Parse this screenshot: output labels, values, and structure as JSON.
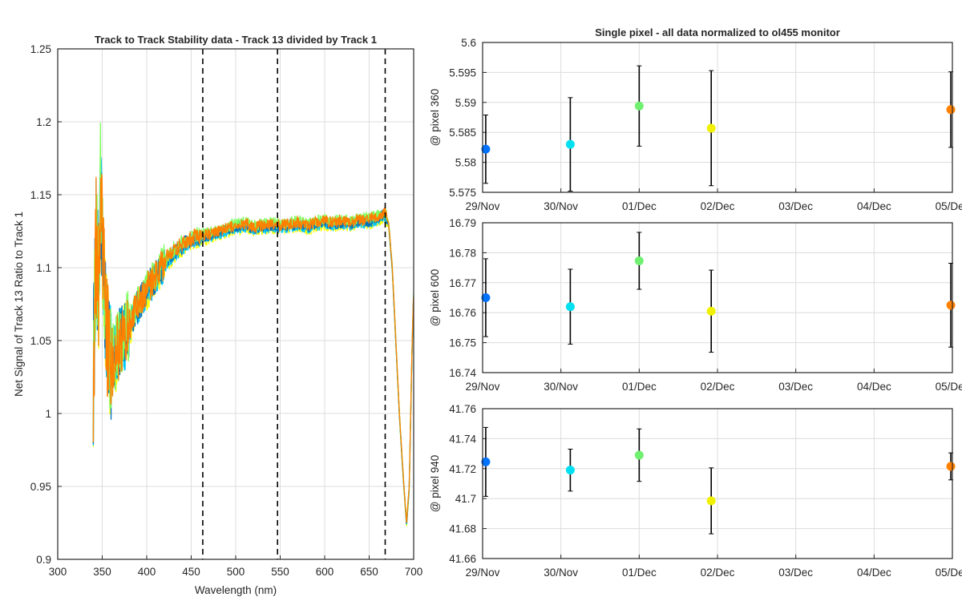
{
  "chart_data": [
    {
      "type": "line",
      "title": "Track to Track Stability data - Track 13 divided by Track 1",
      "xlabel": "Wavelength (nm)",
      "ylabel": "Net Signal of Track 13 Ratio to Track 1",
      "xlim": [
        300,
        700
      ],
      "ylim": [
        0.9,
        1.25
      ],
      "xticks": [
        300,
        350,
        400,
        450,
        500,
        550,
        600,
        650,
        700
      ],
      "xtick_labels": [
        "300",
        "350",
        "400",
        "450",
        "500",
        "550",
        "600",
        "650",
        "700"
      ],
      "yticks": [
        0.9,
        0.95,
        1.0,
        1.05,
        1.1,
        1.15,
        1.2,
        1.25
      ],
      "ytick_labels": [
        "0.9",
        "0.95",
        "1",
        "1.05",
        "1.1",
        "1.15",
        "1.2",
        "1.25"
      ],
      "grid": true,
      "vlines": [
        {
          "x": 463,
          "style": "dashed"
        },
        {
          "x": 547,
          "style": "dashed"
        },
        {
          "x": 668,
          "style": "dashed"
        }
      ],
      "series": [
        {
          "color": "#ffff00",
          "offset": -0.003
        },
        {
          "color": "#00c8ff",
          "offset": -0.002
        },
        {
          "color": "#0072bd",
          "offset": -0.001
        },
        {
          "color": "#80ff60",
          "offset": 0.001
        },
        {
          "color": "#ff8000",
          "offset": 0.0
        }
      ],
      "envelope": {
        "x": [
          340,
          343,
          346,
          348,
          350,
          353,
          356,
          360,
          365,
          370,
          380,
          390,
          400,
          410,
          420,
          430,
          440,
          450,
          460,
          470,
          480,
          490,
          500,
          510,
          520,
          530,
          540,
          550,
          560,
          570,
          580,
          590,
          600,
          610,
          620,
          630,
          640,
          650,
          660,
          668,
          672,
          676,
          680,
          684,
          688,
          692,
          695,
          698,
          700
        ],
        "y": [
          1.03,
          1.12,
          1.08,
          1.16,
          1.12,
          1.08,
          1.05,
          1.035,
          1.04,
          1.05,
          1.06,
          1.075,
          1.085,
          1.095,
          1.104,
          1.111,
          1.116,
          1.12,
          1.122,
          1.123,
          1.125,
          1.127,
          1.129,
          1.13,
          1.128,
          1.129,
          1.13,
          1.129,
          1.13,
          1.131,
          1.129,
          1.131,
          1.132,
          1.131,
          1.132,
          1.131,
          1.133,
          1.133,
          1.135,
          1.137,
          1.13,
          1.1,
          1.05,
          1.0,
          0.96,
          0.925,
          0.95,
          1.04,
          1.085
        ]
      }
    },
    {
      "type": "scatter",
      "title": "Single pixel - all data normalized to ol455 monitor",
      "ylabel": "@ pixel 360",
      "xtick_labels": [
        "29/Nov",
        "30/Nov",
        "01/Dec",
        "02/Dec",
        "03/Dec",
        "04/Dec",
        "05/Dec"
      ],
      "xlim": [
        0,
        6
      ],
      "ylim": [
        5.575,
        5.6
      ],
      "yticks": [
        5.575,
        5.58,
        5.585,
        5.59,
        5.595,
        5.6
      ],
      "ytick_labels": [
        "5.575",
        "5.58",
        "5.585",
        "5.59",
        "5.595",
        "5.6"
      ],
      "grid": true,
      "points": [
        {
          "x": 0.04,
          "y": 5.5822,
          "err": 0.0057,
          "color": "#0072ff"
        },
        {
          "x": 1.12,
          "y": 5.583,
          "err": 0.0078,
          "color": "#00e0f0"
        },
        {
          "x": 2.0,
          "y": 5.5894,
          "err": 0.0067,
          "color": "#70f070"
        },
        {
          "x": 2.92,
          "y": 5.5857,
          "err": 0.0096,
          "color": "#f0f000"
        },
        {
          "x": 5.98,
          "y": 5.5888,
          "err": 0.0063,
          "color": "#ff8000"
        }
      ]
    },
    {
      "type": "scatter",
      "ylabel": "@ pixel 600",
      "xtick_labels": [
        "29/Nov",
        "30/Nov",
        "01/Dec",
        "02/Dec",
        "03/Dec",
        "04/Dec",
        "05/Dec"
      ],
      "xlim": [
        0,
        6
      ],
      "ylim": [
        16.74,
        16.79
      ],
      "yticks": [
        16.74,
        16.75,
        16.76,
        16.77,
        16.78,
        16.79
      ],
      "ytick_labels": [
        "16.74",
        "16.75",
        "16.76",
        "16.77",
        "16.78",
        "16.79"
      ],
      "grid": true,
      "points": [
        {
          "x": 0.04,
          "y": 16.765,
          "err": 0.013,
          "color": "#0072ff"
        },
        {
          "x": 1.12,
          "y": 16.762,
          "err": 0.0125,
          "color": "#00e0f0"
        },
        {
          "x": 2.0,
          "y": 16.7773,
          "err": 0.0095,
          "color": "#70f070"
        },
        {
          "x": 2.92,
          "y": 16.7605,
          "err": 0.0137,
          "color": "#f0f000"
        },
        {
          "x": 5.98,
          "y": 16.7625,
          "err": 0.014,
          "color": "#ff8000"
        }
      ]
    },
    {
      "type": "scatter",
      "ylabel": "@ pixel 940",
      "xtick_labels": [
        "29/Nov",
        "30/Nov",
        "01/Dec",
        "02/Dec",
        "03/Dec",
        "04/Dec",
        "05/Dec"
      ],
      "xlim": [
        0,
        6
      ],
      "ylim": [
        41.66,
        41.76
      ],
      "yticks": [
        41.66,
        41.68,
        41.7,
        41.72,
        41.74,
        41.76
      ],
      "ytick_labels": [
        "41.66",
        "41.68",
        "41.7",
        "41.72",
        "41.74",
        "41.76"
      ],
      "grid": true,
      "points": [
        {
          "x": 0.04,
          "y": 41.7245,
          "err": 0.023,
          "color": "#0072ff"
        },
        {
          "x": 1.12,
          "y": 41.719,
          "err": 0.014,
          "color": "#00e0f0"
        },
        {
          "x": 2.0,
          "y": 41.729,
          "err": 0.0175,
          "color": "#70f070"
        },
        {
          "x": 2.92,
          "y": 41.6985,
          "err": 0.022,
          "color": "#f0f000"
        },
        {
          "x": 5.98,
          "y": 41.7215,
          "err": 0.009,
          "color": "#ff8000"
        }
      ]
    }
  ]
}
